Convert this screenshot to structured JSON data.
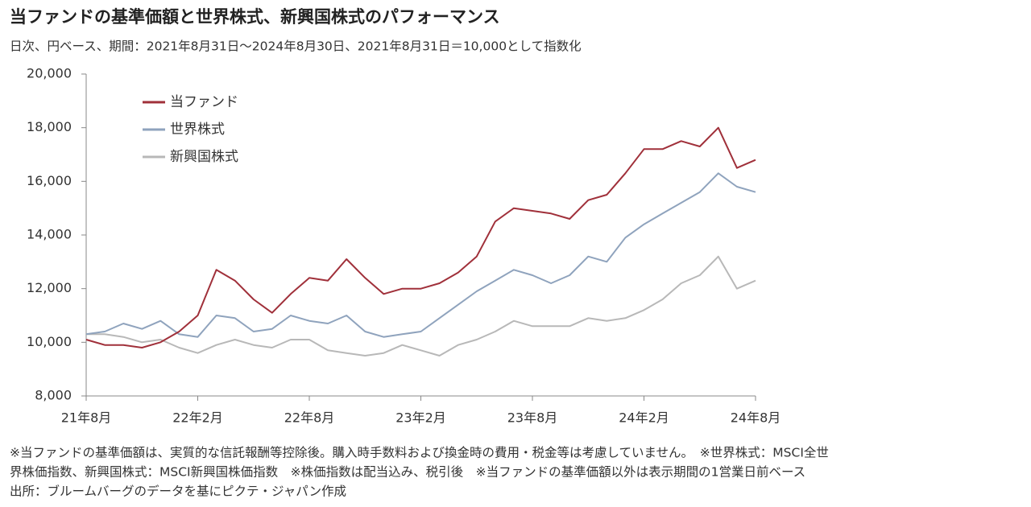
{
  "chart_data": {
    "type": "line",
    "title": "当ファンドの基準価額と世界株式、新興国株式のパフォーマンス",
    "subtitle": "日次、円ベース、期間：2021年8月31日～2024年8月30日、2021年8月31日＝10,000として指数化",
    "categories": [
      "21年8月",
      null,
      null,
      null,
      null,
      null,
      "22年2月",
      null,
      null,
      null,
      null,
      null,
      "22年8月",
      null,
      null,
      null,
      null,
      null,
      "23年2月",
      null,
      null,
      null,
      null,
      null,
      "23年8月",
      null,
      null,
      null,
      null,
      null,
      "24年2月",
      null,
      null,
      null,
      null,
      null,
      "24年8月"
    ],
    "series": [
      {
        "name": "当ファンド",
        "color": "#a0303a",
        "values": [
          10100,
          9900,
          9900,
          9800,
          10000,
          10400,
          11000,
          12700,
          12300,
          11600,
          11100,
          11800,
          12400,
          12300,
          13100,
          12400,
          11800,
          12000,
          12000,
          12200,
          12600,
          13200,
          14500,
          15000,
          14900,
          14800,
          14600,
          15300,
          15500,
          16300,
          17200,
          17200,
          17500,
          17300,
          18000,
          16500,
          16800
        ]
      },
      {
        "name": "世界株式",
        "color": "#8fa3bd",
        "values": [
          10300,
          10400,
          10700,
          10500,
          10800,
          10300,
          10200,
          11000,
          10900,
          10400,
          10500,
          11000,
          10800,
          10700,
          11000,
          10400,
          10200,
          10300,
          10400,
          10900,
          11400,
          11900,
          12300,
          12700,
          12500,
          12200,
          12500,
          13200,
          13000,
          13900,
          14400,
          14800,
          15200,
          15600,
          16300,
          15800,
          15600
        ]
      },
      {
        "name": "新興国株式",
        "color": "#b8b8b8",
        "values": [
          10300,
          10300,
          10200,
          10000,
          10100,
          9800,
          9600,
          9900,
          10100,
          9900,
          9800,
          10100,
          10100,
          9700,
          9600,
          9500,
          9600,
          9900,
          9700,
          9500,
          9900,
          10100,
          10400,
          10800,
          10600,
          10600,
          10600,
          10900,
          10800,
          10900,
          11200,
          11600,
          12200,
          12500,
          13200,
          12000,
          12300
        ]
      }
    ],
    "ylim": [
      8000,
      20000
    ],
    "yticks": [
      {
        "value": 8000,
        "label": "8,000"
      },
      {
        "value": 10000,
        "label": "10,000"
      },
      {
        "value": 12000,
        "label": "12,000"
      },
      {
        "value": 14000,
        "label": "14,000"
      },
      {
        "value": 16000,
        "label": "16,000"
      },
      {
        "value": 18000,
        "label": "18,000"
      },
      {
        "value": 20000,
        "label": "20,000"
      }
    ],
    "legend": "upper left",
    "notes": [
      "※当ファンドの基準価額は、実質的な信託報酬等控除後。購入時手数料および換金時の費用・税金等は考慮していません。　※世界株式：MSCI全世",
      "界株価指数、新興国株式：MSCI新興国株価指数　※株価指数は配当込み、税引後　※当ファンドの基準価額以外は表示期間の1営業日前ベース",
      "出所：ブルームバーグのデータを基にピクテ・ジャパン作成"
    ]
  }
}
